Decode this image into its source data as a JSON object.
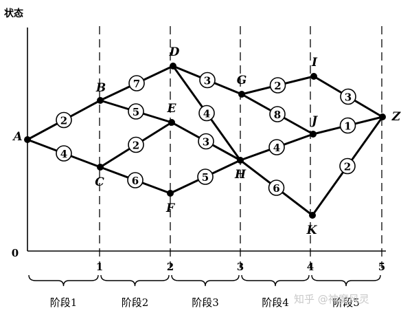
{
  "axis": {
    "y_label": "状态",
    "origin": "0"
  },
  "stages": {
    "ticks": [
      "1",
      "2",
      "3",
      "4",
      "5"
    ],
    "labels": [
      "阶段1",
      "阶段2",
      "阶段3",
      "阶段4",
      "阶段5"
    ]
  },
  "nodes": [
    {
      "id": "A",
      "label": "A"
    },
    {
      "id": "B",
      "label": "B"
    },
    {
      "id": "C",
      "label": "C"
    },
    {
      "id": "D",
      "label": "D"
    },
    {
      "id": "E",
      "label": "E"
    },
    {
      "id": "F",
      "label": "F"
    },
    {
      "id": "G",
      "label": "G"
    },
    {
      "id": "H",
      "label": "H"
    },
    {
      "id": "I",
      "label": "I"
    },
    {
      "id": "J",
      "label": "J"
    },
    {
      "id": "K",
      "label": "K"
    },
    {
      "id": "Z",
      "label": "Z"
    }
  ],
  "edges": [
    {
      "from": "A",
      "to": "B",
      "weight": "2"
    },
    {
      "from": "A",
      "to": "C",
      "weight": "4"
    },
    {
      "from": "B",
      "to": "D",
      "weight": "7"
    },
    {
      "from": "B",
      "to": "E",
      "weight": "5"
    },
    {
      "from": "C",
      "to": "E",
      "weight": "2"
    },
    {
      "from": "C",
      "to": "F",
      "weight": "6"
    },
    {
      "from": "D",
      "to": "G",
      "weight": "3"
    },
    {
      "from": "D",
      "to": "H",
      "weight": "4"
    },
    {
      "from": "E",
      "to": "H",
      "weight": "3"
    },
    {
      "from": "F",
      "to": "H",
      "weight": "5"
    },
    {
      "from": "G",
      "to": "I",
      "weight": "2"
    },
    {
      "from": "G",
      "to": "J",
      "weight": "8"
    },
    {
      "from": "H",
      "to": "J",
      "weight": "4"
    },
    {
      "from": "H",
      "to": "K",
      "weight": "6"
    },
    {
      "from": "I",
      "to": "Z",
      "weight": "3"
    },
    {
      "from": "J",
      "to": "Z",
      "weight": "1"
    },
    {
      "from": "K",
      "to": "Z",
      "weight": "2"
    }
  ],
  "watermark": "知乎 @神魔风灵"
}
